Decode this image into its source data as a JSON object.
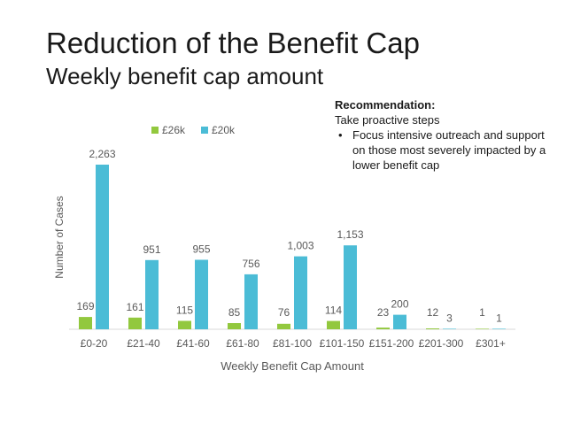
{
  "slide": {
    "title": "Reduction of the Benefit Cap",
    "subtitle": "Weekly benefit cap amount"
  },
  "recommendation": {
    "heading": "Recommendation:",
    "intro": "Take proactive steps",
    "bullets": [
      "Focus intensive outreach and support on those most severely impacted by a lower benefit cap"
    ]
  },
  "colors": {
    "series_26k": "#92c83e",
    "series_20k": "#4bbcd6"
  },
  "chart_data": {
    "type": "bar",
    "xlabel": "Weekly Benefit Cap Amount",
    "ylabel": "Number of Cases",
    "categories": [
      "£0-20",
      "£21-40",
      "£41-60",
      "£61-80",
      "£81-100",
      "£101-150",
      "£151-200",
      "£201-300",
      "£301+"
    ],
    "series": [
      {
        "name": "£26k",
        "values": [
          169,
          161,
          115,
          85,
          76,
          114,
          23,
          12,
          1
        ],
        "labels": [
          "169",
          "161",
          "115",
          "85",
          "76",
          "114",
          "23",
          "12",
          "1"
        ]
      },
      {
        "name": "£20k",
        "values": [
          2263,
          951,
          955,
          756,
          1003,
          1153,
          200,
          3,
          1
        ],
        "labels": [
          "2,263",
          "951",
          "955",
          "756",
          "1,003",
          "1,153",
          "200",
          "3",
          "1"
        ]
      }
    ],
    "legend_position": "top",
    "grid": false
  }
}
